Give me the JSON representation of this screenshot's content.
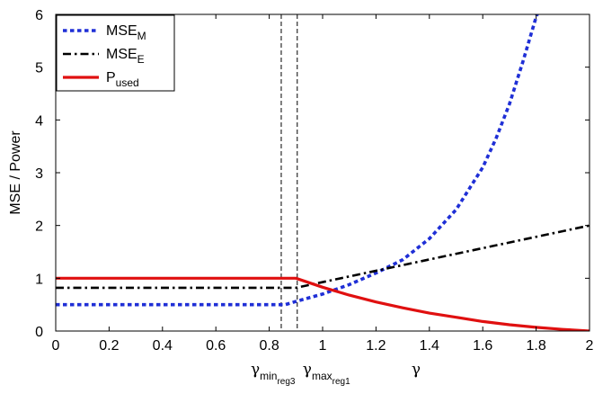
{
  "chart_data": {
    "type": "line",
    "title": "",
    "xlabel": "γ",
    "ylabel": "MSE / Power",
    "xlim": [
      0,
      2
    ],
    "ylim": [
      0,
      6
    ],
    "xticks": [
      "0",
      "0.2",
      "0.4",
      "0.6",
      "0.8",
      "1",
      "1.2",
      "1.4",
      "1.6",
      "1.8",
      "2"
    ],
    "yticks": [
      "0",
      "1",
      "2",
      "3",
      "4",
      "5",
      "6"
    ],
    "grid": false,
    "legend_position": "top-left",
    "series": [
      {
        "name_main": "MSE",
        "name_sub": "M",
        "color": "#1f2fd6",
        "style": "dotted",
        "x": [
          0,
          0.86,
          0.9,
          1.0,
          1.1,
          1.2,
          1.3,
          1.4,
          1.5,
          1.6,
          1.65,
          1.7,
          1.75,
          1.8,
          1.82
        ],
        "y": [
          0.5,
          0.5,
          0.56,
          0.7,
          0.88,
          1.1,
          1.35,
          1.75,
          2.3,
          3.1,
          3.65,
          4.3,
          5.1,
          5.95,
          6.2
        ]
      },
      {
        "name_main": "MSE",
        "name_sub": "E",
        "color": "#000000",
        "style": "dashdot",
        "x": [
          0,
          0.9,
          2
        ],
        "y": [
          0.82,
          0.82,
          2.0
        ]
      },
      {
        "name_main": "P",
        "name_sub": "used",
        "color": "#e01010",
        "style": "solid",
        "x": [
          0,
          0.9,
          1.0,
          1.1,
          1.2,
          1.3,
          1.4,
          1.5,
          1.6,
          1.7,
          1.8,
          1.9,
          2.0
        ],
        "y": [
          1.0,
          1.0,
          0.83,
          0.68,
          0.55,
          0.44,
          0.34,
          0.26,
          0.18,
          0.12,
          0.07,
          0.03,
          0.0
        ]
      }
    ],
    "vlines": [
      {
        "x": 0.845,
        "label_main": "γ",
        "label_sub": "min",
        "label_subsub": "reg3"
      },
      {
        "x": 0.905,
        "label_main": "γ",
        "label_sub": "max",
        "label_subsub": "reg1"
      }
    ]
  }
}
